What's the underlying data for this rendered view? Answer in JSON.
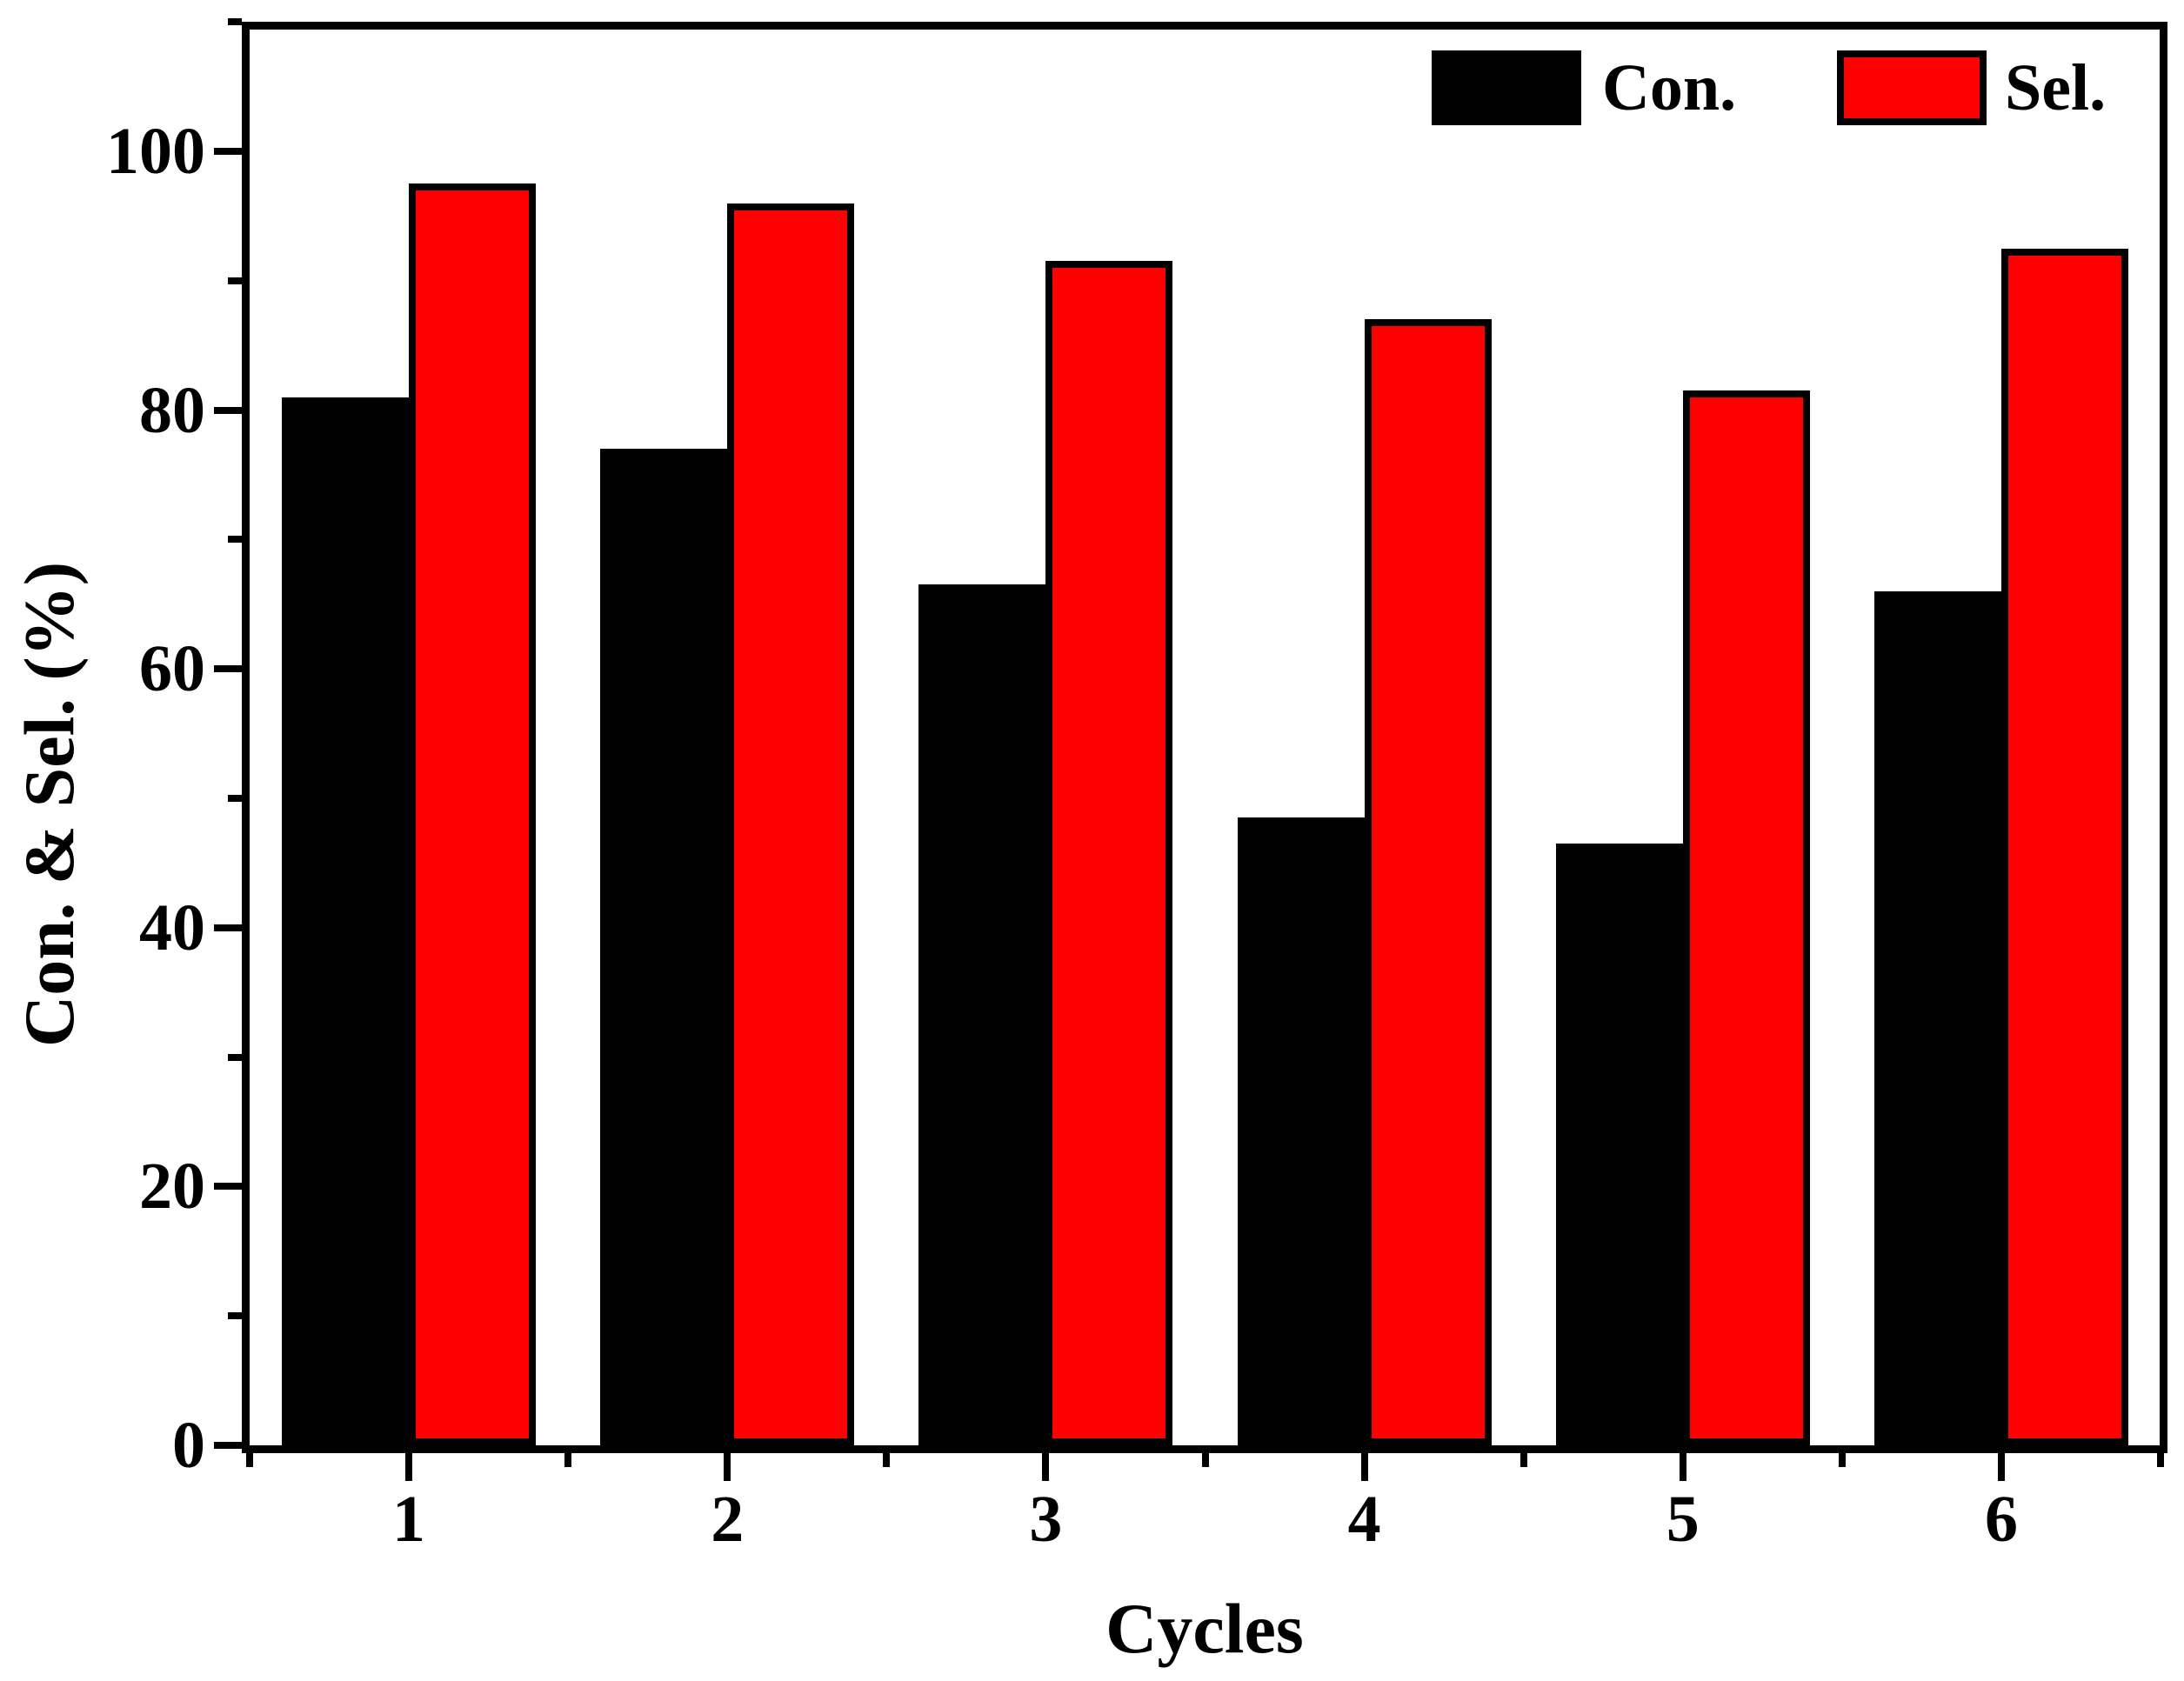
{
  "chart_data": {
    "type": "bar",
    "title": "",
    "categories": [
      "1",
      "2",
      "3",
      "4",
      "5",
      "6"
    ],
    "series": [
      {
        "name": "Con.",
        "color": "#000000",
        "values": [
          81,
          77,
          66.5,
          48.5,
          46.5,
          66
        ]
      },
      {
        "name": "Sel.",
        "color": "#FF0000",
        "values": [
          97.5,
          96,
          91.5,
          87,
          81.5,
          92.5
        ]
      }
    ],
    "xlabel": "Cycles",
    "ylabel": "Con. & Sel. (%)",
    "ylim": [
      0,
      110
    ],
    "y_major_ticks": [
      0,
      20,
      40,
      60,
      80,
      100
    ],
    "y_minor_ticks": [
      10,
      30,
      50,
      70,
      90,
      110
    ],
    "x_minor_ticks_between_categories": true,
    "tick_direction": "out",
    "grid": false,
    "frame": true,
    "bar_edge_color": "#000000",
    "legend_position": "top-right-inside"
  }
}
